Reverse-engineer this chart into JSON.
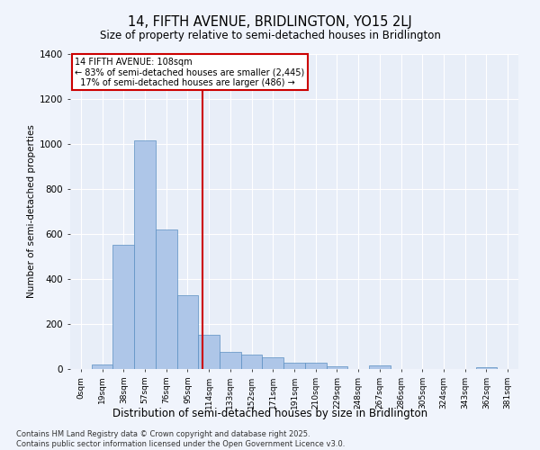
{
  "title": "14, FIFTH AVENUE, BRIDLINGTON, YO15 2LJ",
  "subtitle": "Size of property relative to semi-detached houses in Bridlington",
  "xlabel": "Distribution of semi-detached houses by size in Bridlington",
  "ylabel": "Number of semi-detached properties",
  "bar_color": "#aec6e8",
  "bar_edge_color": "#5a8fc2",
  "background_color": "#e8eef8",
  "grid_color": "#ffffff",
  "annotation_box_color": "#cc0000",
  "vline_color": "#cc0000",
  "categories": [
    "0sqm",
    "19sqm",
    "38sqm",
    "57sqm",
    "76sqm",
    "95sqm",
    "114sqm",
    "133sqm",
    "152sqm",
    "171sqm",
    "191sqm",
    "210sqm",
    "229sqm",
    "248sqm",
    "267sqm",
    "286sqm",
    "305sqm",
    "324sqm",
    "343sqm",
    "362sqm",
    "381sqm"
  ],
  "values": [
    0,
    20,
    553,
    1015,
    620,
    327,
    152,
    75,
    63,
    52,
    28,
    28,
    13,
    0,
    17,
    0,
    0,
    0,
    0,
    10,
    0
  ],
  "property_label": "14 FIFTH AVENUE: 108sqm",
  "pct_smaller": 83,
  "pct_smaller_count": 2445,
  "pct_larger": 17,
  "pct_larger_count": 486,
  "vline_position": 5.68,
  "ylim": [
    0,
    1400
  ],
  "yticks": [
    0,
    200,
    400,
    600,
    800,
    1000,
    1200,
    1400
  ],
  "footnote": "Contains HM Land Registry data © Crown copyright and database right 2025.\nContains public sector information licensed under the Open Government Licence v3.0."
}
